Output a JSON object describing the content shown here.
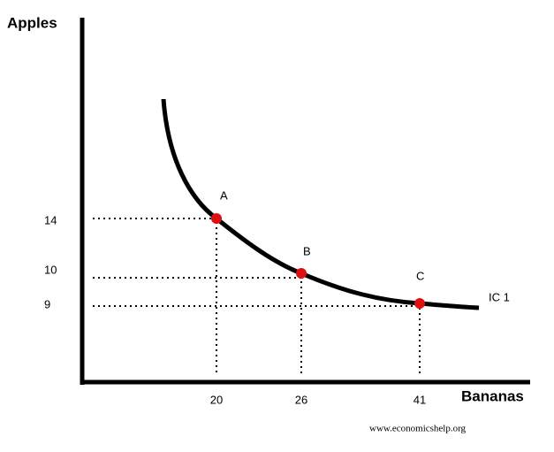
{
  "axes": {
    "y_label": "Apples",
    "x_label": "Bananas"
  },
  "points": [
    {
      "label": "A",
      "x": "20",
      "y": "14"
    },
    {
      "label": "B",
      "x": "26",
      "y": "10"
    },
    {
      "label": "C",
      "x": "41",
      "y": "9"
    }
  ],
  "curve_label": "IC 1",
  "watermark": "www.economicshelp.org"
}
